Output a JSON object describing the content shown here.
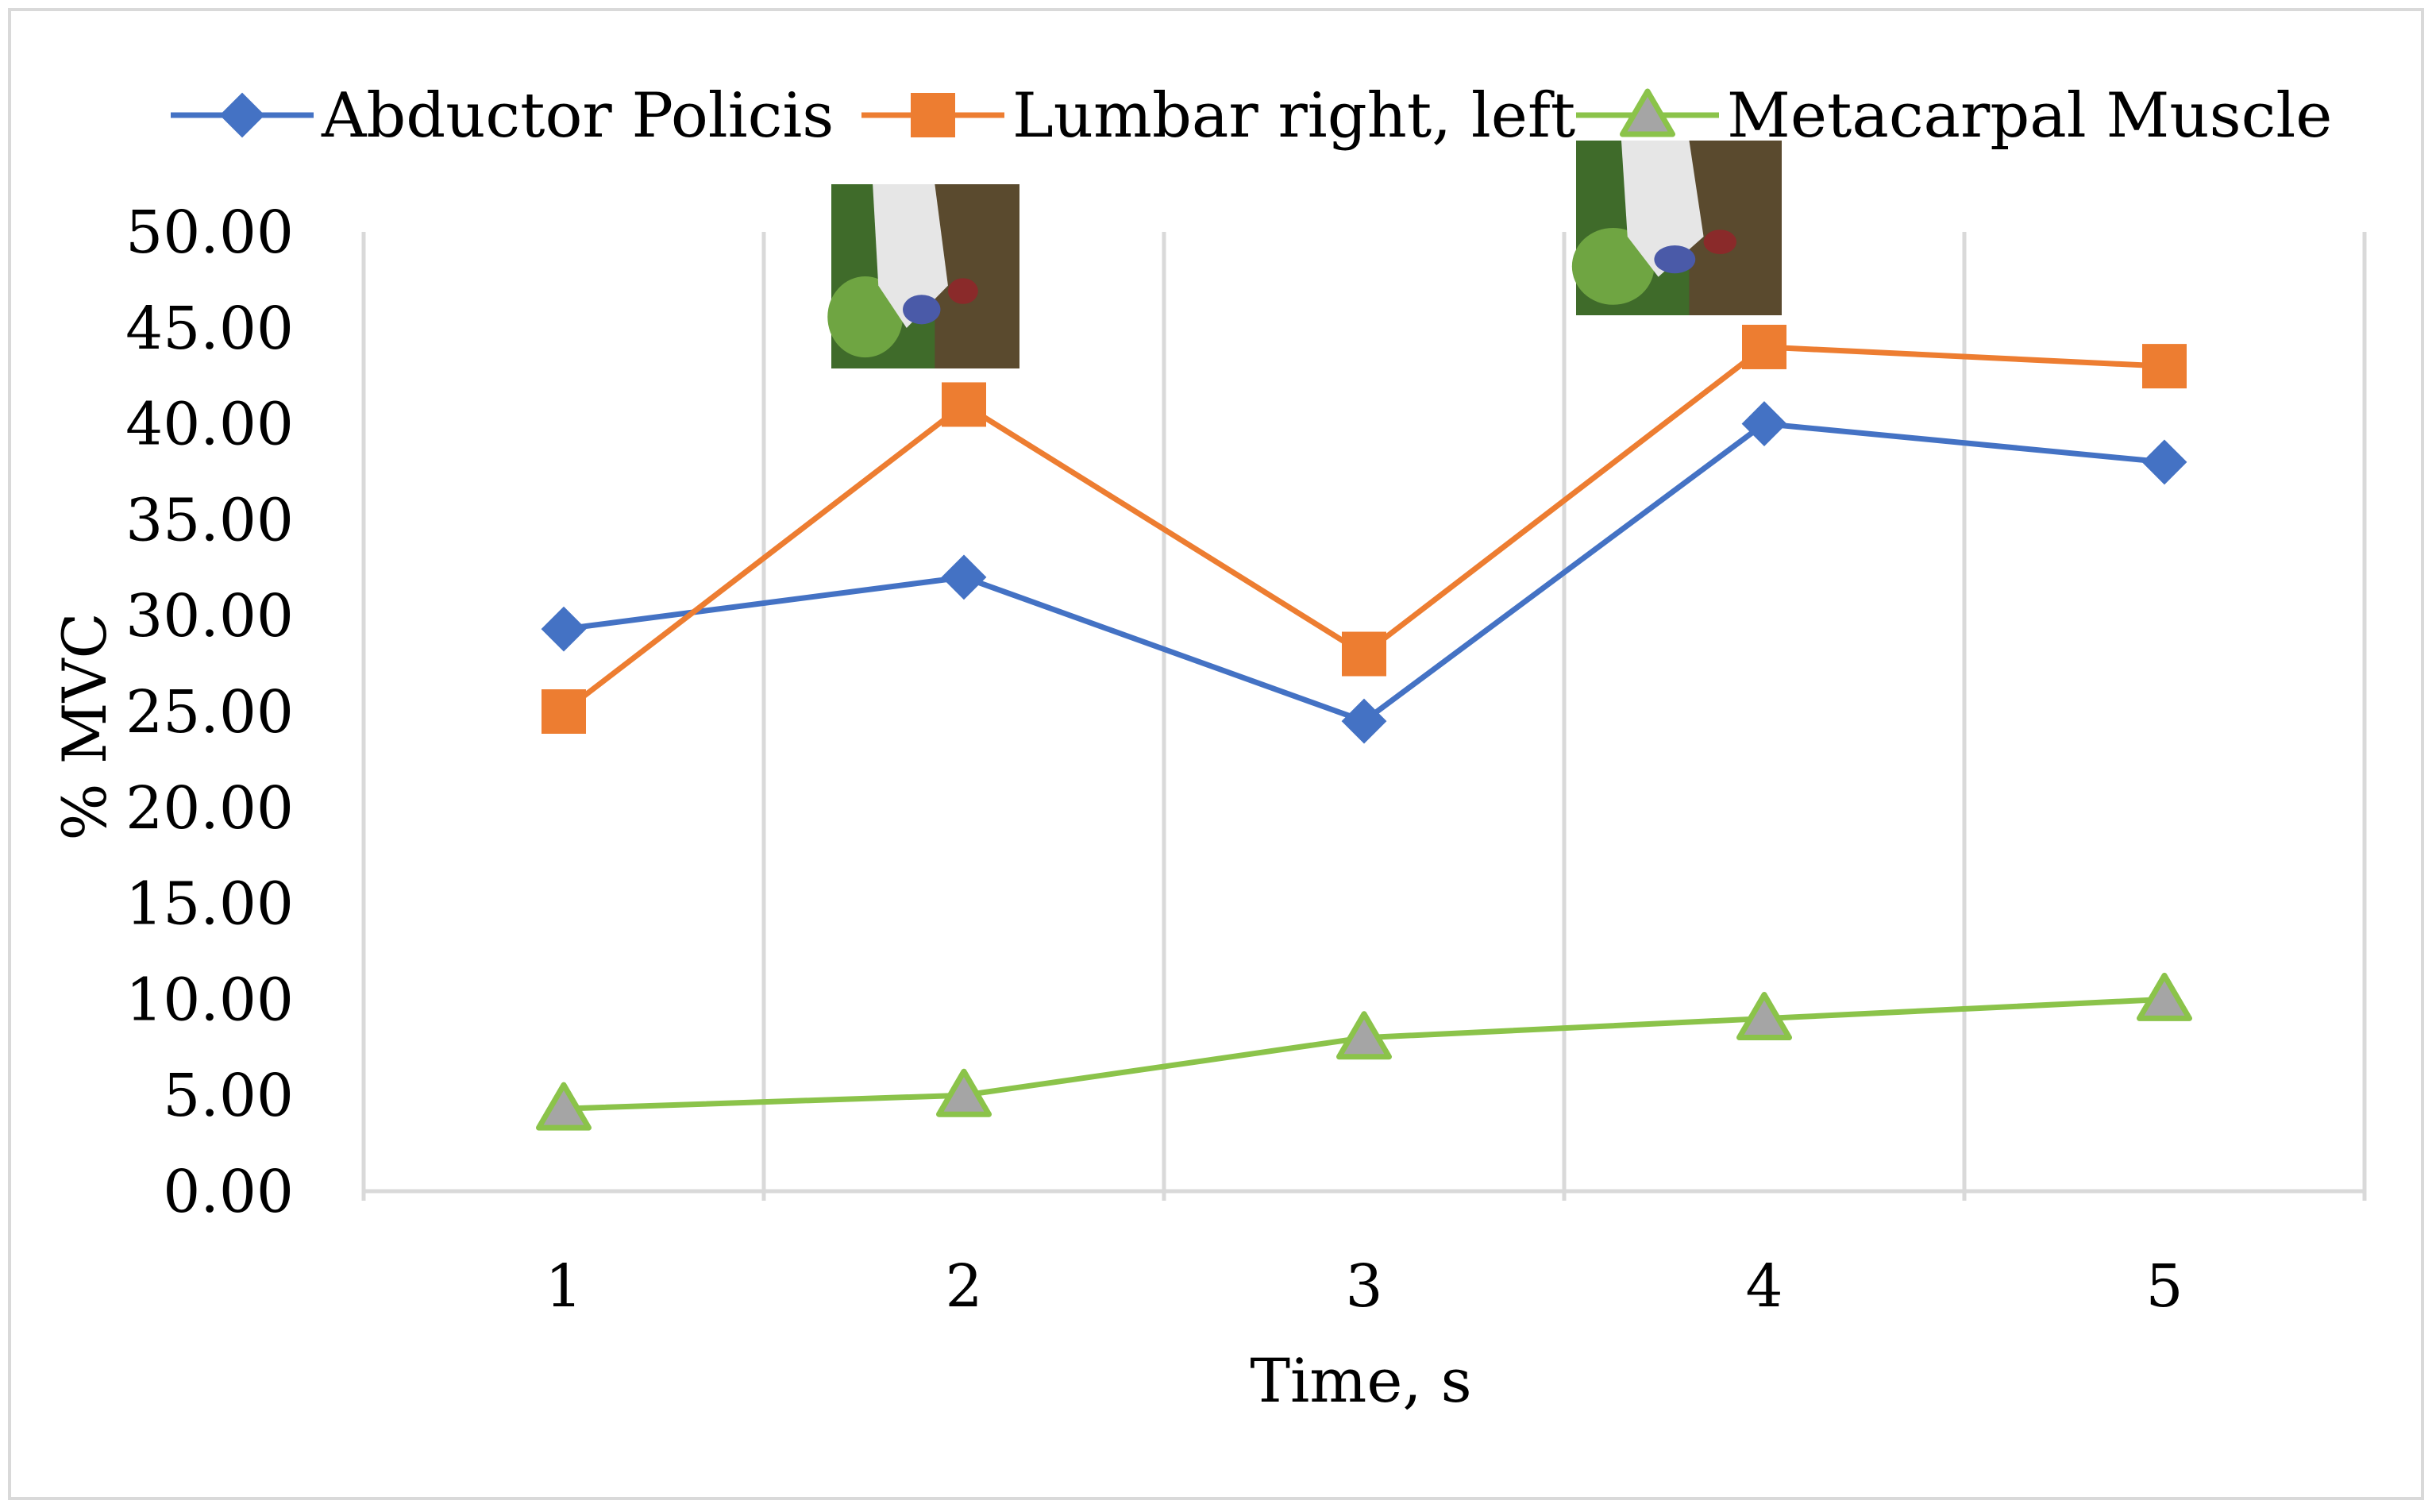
{
  "chart_data": {
    "type": "line",
    "title": "",
    "xlabel": "Time, s",
    "ylabel": "% MVC",
    "categories": [
      "1",
      "2",
      "3",
      "4",
      "5"
    ],
    "ylim": [
      0,
      50
    ],
    "yticks": [
      "0.00",
      "5.00",
      "10.00",
      "15.00",
      "20.00",
      "25.00",
      "30.00",
      "35.00",
      "40.00",
      "45.00",
      "50.00"
    ],
    "grid": "vertical",
    "legend": "top",
    "series": [
      {
        "name": "Abductor Policis",
        "values": [
          29.3,
          32.0,
          24.5,
          40.0,
          38.0
        ],
        "color": "#4472C4",
        "marker": "diamond"
      },
      {
        "name": "Lumbar right, left",
        "values": [
          25.0,
          41.0,
          28.0,
          44.0,
          43.0
        ],
        "color": "#ED7D31",
        "marker": "square"
      },
      {
        "name": "Metacarpal Muscle",
        "values": [
          4.3,
          5.0,
          8.0,
          9.0,
          10.0
        ],
        "color": "#8BC34A",
        "marker": "triangle"
      }
    ],
    "photo_insets": [
      {
        "category": "2",
        "icon": "gloved-hand-photo"
      },
      {
        "category": "4",
        "icon": "gloved-hand-photo"
      }
    ]
  }
}
